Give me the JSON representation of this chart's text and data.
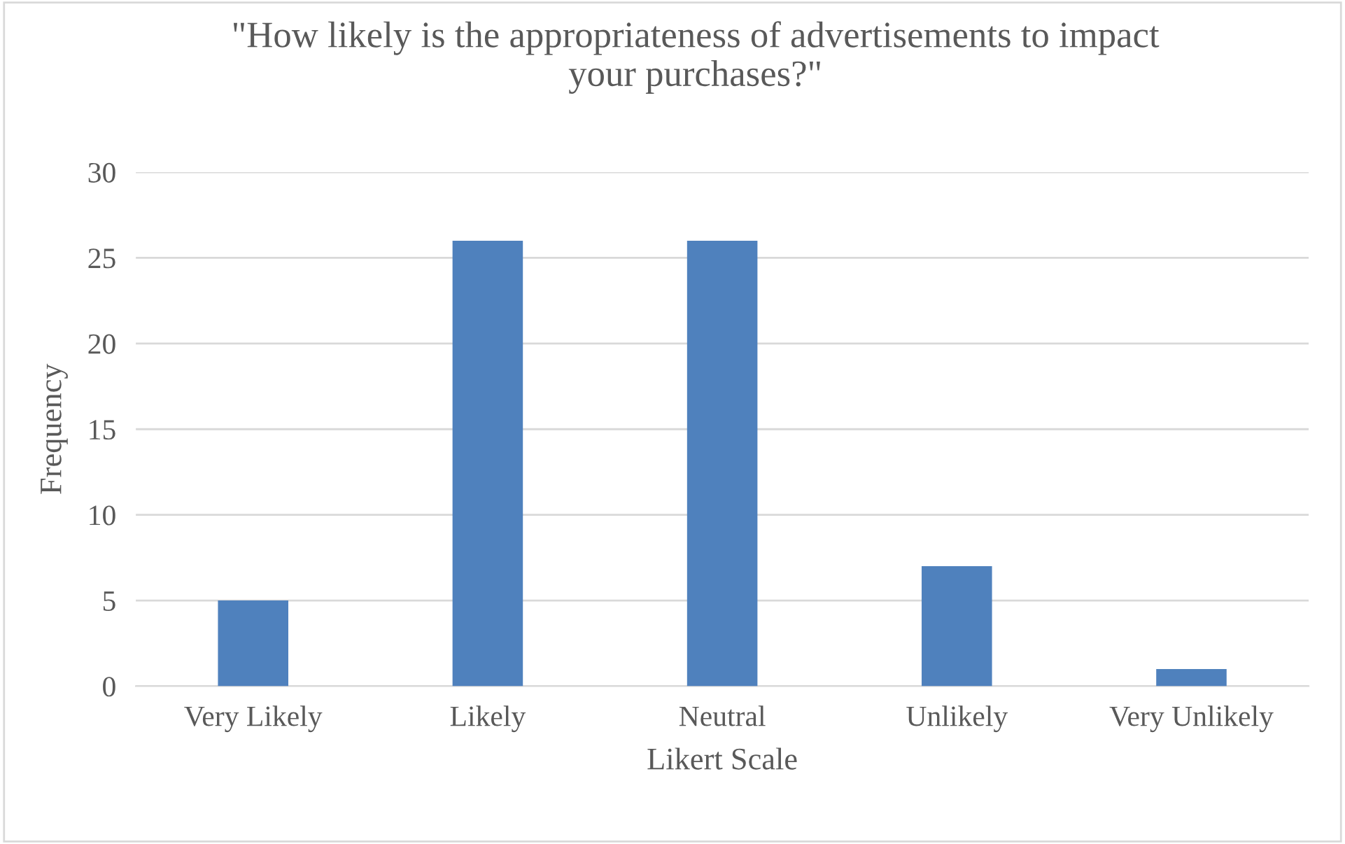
{
  "chart_data": {
    "type": "bar",
    "title": "\"How likely is the appropriateness of advertisements to impact\nyour purchases?\"",
    "xlabel": "Likert Scale",
    "ylabel": "Frequency",
    "categories": [
      "Very Likely",
      "Likely",
      "Neutral",
      "Unlikely",
      "Very Unlikely"
    ],
    "values": [
      5,
      26,
      26,
      7,
      1
    ],
    "color": "#4f81bd",
    "ylim": [
      0,
      30
    ],
    "yticks": [
      0,
      5,
      10,
      15,
      20,
      25,
      30
    ],
    "grid": "y",
    "legend": false
  }
}
